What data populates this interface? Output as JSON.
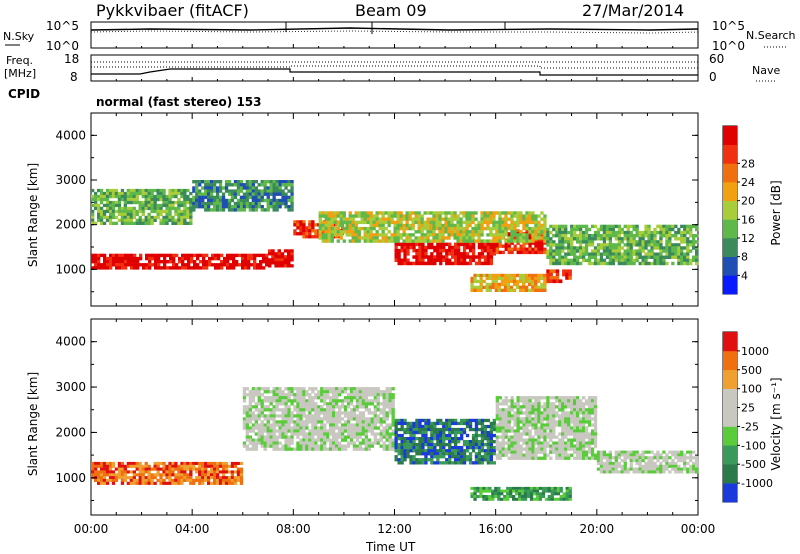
{
  "header": {
    "station": "Pykkvibaer (fitACF)",
    "beam": "Beam 09",
    "date": "27/Mar/2014"
  },
  "noise_panel": {
    "left_label": "N.Sky",
    "right_label": "N.Search",
    "y_ticks": [
      "10^5",
      "10^0"
    ]
  },
  "freq_panel": {
    "left_label_1": "Freq.",
    "left_label_2": "[MHz]",
    "left_ticks": [
      "18",
      "8"
    ],
    "right_label": "Nave",
    "right_ticks": [
      "60",
      "0"
    ]
  },
  "cpid": {
    "label": "CPID",
    "value": "normal (fast stereo) 153"
  },
  "x_axis": {
    "label": "Time UT",
    "ticks": [
      "00:00",
      "04:00",
      "08:00",
      "12:00",
      "16:00",
      "20:00",
      "00:00"
    ],
    "range_hours": [
      0,
      24
    ]
  },
  "chart_data": [
    {
      "type": "heatmap",
      "ylabel": "Slant Range [km]",
      "x_unit": "hours UT",
      "ylim": [
        180,
        4500
      ],
      "y_ticks": [
        1000,
        2000,
        3000,
        4000
      ],
      "colorbar": {
        "label": "Power [dB]",
        "ticks": [
          "4",
          "8",
          "12",
          "16",
          "20",
          "24",
          "28"
        ],
        "colors": [
          "#0a1aff",
          "#1f4fb4",
          "#3a8a5c",
          "#5fb84a",
          "#a8cc3a",
          "#f0a010",
          "#f07010",
          "#f03010",
          "#e00000"
        ]
      },
      "regions": [
        {
          "x": [
            0,
            7
          ],
          "y": [
            1000,
            1350
          ],
          "level": 8
        },
        {
          "x": [
            7,
            8
          ],
          "y": [
            1050,
            1450
          ],
          "level": 8
        },
        {
          "x": [
            8,
            10
          ],
          "y": [
            1700,
            2100
          ],
          "level": 7
        },
        {
          "x": [
            12,
            16
          ],
          "y": [
            1100,
            1600
          ],
          "level": 8
        },
        {
          "x": [
            16,
            18
          ],
          "y": [
            1350,
            1900
          ],
          "level": 7
        },
        {
          "x": [
            18,
            19
          ],
          "y": [
            700,
            1000
          ],
          "level": 7
        },
        {
          "x": [
            0,
            4
          ],
          "y": [
            2000,
            2800
          ],
          "level": 3
        },
        {
          "x": [
            4,
            8
          ],
          "y": [
            2300,
            3000
          ],
          "level": 2
        },
        {
          "x": [
            9,
            18
          ],
          "y": [
            1600,
            2300
          ],
          "level": 4
        },
        {
          "x": [
            18,
            24
          ],
          "y": [
            1100,
            2000
          ],
          "level": 3
        },
        {
          "x": [
            15,
            18
          ],
          "y": [
            500,
            900
          ],
          "level": 5
        }
      ]
    },
    {
      "type": "heatmap",
      "ylabel": "Slant Range [km]",
      "x_unit": "hours UT",
      "ylim": [
        180,
        4500
      ],
      "y_ticks": [
        1000,
        2000,
        3000,
        4000
      ],
      "colorbar": {
        "label": "Velocity [m s⁻¹]",
        "ticks": [
          "1000",
          "500",
          "100",
          "25",
          "-25",
          "-100",
          "-500",
          "-1000"
        ],
        "colors": [
          "#1a3adc",
          "#2a7a4a",
          "#3a9a5a",
          "#5acb3a",
          "#c8c8c0",
          "#c8c8c0",
          "#f0a030",
          "#f07010",
          "#e01010"
        ]
      },
      "regions": [
        {
          "x": [
            0,
            6
          ],
          "y": [
            850,
            1350
          ],
          "level": 7
        },
        {
          "x": [
            6,
            12
          ],
          "y": [
            1600,
            3000
          ],
          "level": 4
        },
        {
          "x": [
            12,
            16
          ],
          "y": [
            1300,
            2300
          ],
          "level": 1
        },
        {
          "x": [
            16,
            20
          ],
          "y": [
            1400,
            2800
          ],
          "level": 4
        },
        {
          "x": [
            15,
            19
          ],
          "y": [
            500,
            800
          ],
          "level": 2
        },
        {
          "x": [
            20,
            24
          ],
          "y": [
            1100,
            1600
          ],
          "level": 4
        }
      ]
    }
  ]
}
